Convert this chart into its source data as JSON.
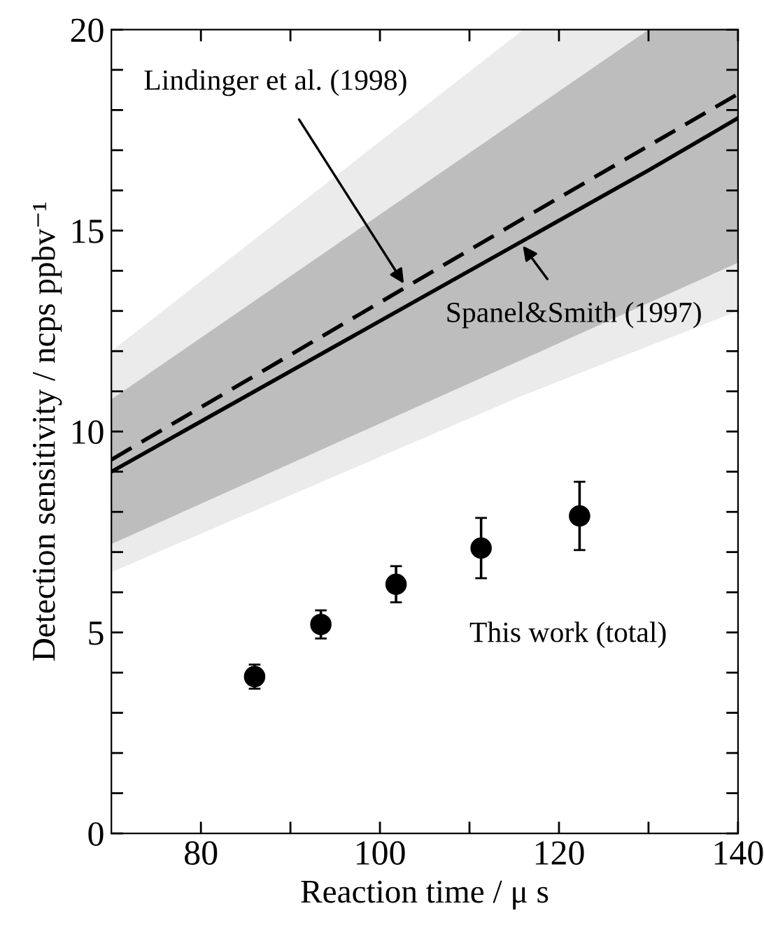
{
  "chart_data": {
    "type": "line",
    "xlabel": "Reaction time / μ s",
    "ylabel": "Detection sensitivity / ncps ppbv⁻¹",
    "xlim": [
      70,
      140
    ],
    "ylim": [
      0,
      20
    ],
    "xticks": [
      80,
      {
        "value": 90,
        "label": null
      },
      100,
      {
        "value": 110,
        "label": null
      },
      120,
      {
        "value": 130,
        "label": null
      },
      140
    ],
    "yticks": [
      0,
      {
        "value": 1,
        "label": null
      },
      {
        "value": 2,
        "label": null
      },
      {
        "value": 3,
        "label": null
      },
      {
        "value": 4,
        "label": null
      },
      5,
      {
        "value": 6,
        "label": null
      },
      {
        "value": 7,
        "label": null
      },
      {
        "value": 8,
        "label": null
      },
      {
        "value": 9,
        "label": null
      },
      10,
      {
        "value": 11,
        "label": null
      },
      {
        "value": 12,
        "label": null
      },
      {
        "value": 13,
        "label": null
      },
      {
        "value": 14,
        "label": null
      },
      15,
      {
        "value": 16,
        "label": null
      },
      {
        "value": 17,
        "label": null
      },
      {
        "value": 18,
        "label": null
      },
      {
        "value": 19,
        "label": null
      },
      20
    ],
    "grid": false,
    "series": [
      {
        "color": "#000000",
        "line_style": "dashed",
        "x": [
          70,
          116,
          140
        ],
        "values": [
          9.3,
          15.3,
          18.4
        ],
        "lower": [
          6.5,
          10.9,
          13.0
        ],
        "upper": [
          12.0,
          20,
          20
        ]
      },
      {
        "color": "#000000",
        "line_style": "solid",
        "x": [
          70,
          130,
          140
        ],
        "values": [
          9.0,
          16.5,
          17.8
        ],
        "lower": [
          7.2,
          13.2,
          14.2
        ],
        "upper": [
          10.8,
          20,
          20
        ]
      },
      {
        "type": "scatter",
        "color": "#000000",
        "marker": "circle",
        "x": [
          86.0,
          93.4,
          101.8,
          111.3,
          122.3
        ],
        "values": [
          3.9,
          5.2,
          6.2,
          7.1,
          7.9
        ],
        "errors": [
          0.3,
          0.35,
          0.45,
          0.75,
          0.85
        ]
      }
    ],
    "annotations": [
      {
        "text": "Lindinger et al. (1998)",
        "x": 102.9,
        "y": 13.6
      },
      {
        "text": "Spanel&Smith (1997)",
        "x": 115.7,
        "y": 14.7
      },
      "This work (total)"
    ]
  }
}
